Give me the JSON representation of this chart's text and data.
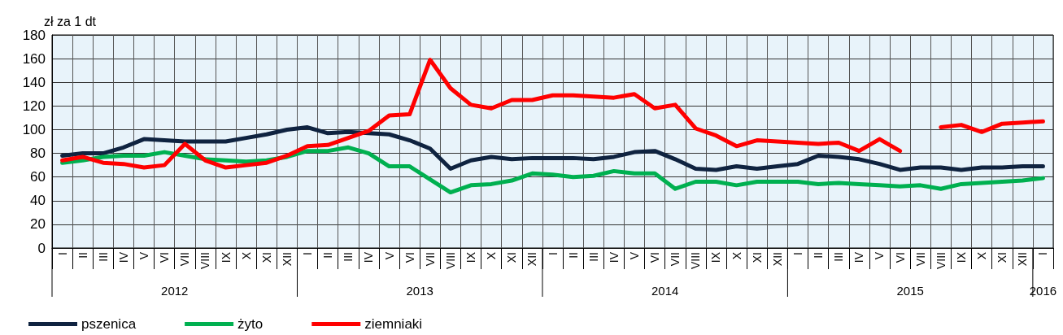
{
  "chart_data": {
    "type": "line",
    "ylabel": "zł za 1 dt",
    "categories": [
      "I",
      "II",
      "III",
      "IV",
      "V",
      "VI",
      "VII",
      "VIII",
      "IX",
      "X",
      "XI",
      "XII",
      "I",
      "II",
      "III",
      "IV",
      "V",
      "VI",
      "VII",
      "VIII",
      "IX",
      "X",
      "XI",
      "XII",
      "I",
      "II",
      "III",
      "IV",
      "V",
      "VI",
      "VII",
      "VIII",
      "IX",
      "X",
      "XI",
      "XII",
      "I",
      "II",
      "III",
      "IV",
      "V",
      "VI",
      "VII",
      "VIII",
      "IX",
      "X",
      "XI",
      "XII",
      "I"
    ],
    "annotations": [
      "2012",
      "2013",
      "2014",
      "2015",
      "2016"
    ],
    "series": [
      {
        "name": "pszenica",
        "color": "#0f2340",
        "values": [
          78,
          80,
          80,
          85,
          92,
          91,
          90,
          90,
          90,
          93,
          96,
          100,
          102,
          97,
          98,
          97,
          96,
          91,
          84,
          67,
          74,
          77,
          75,
          76,
          76,
          76,
          75,
          77,
          81,
          82,
          75,
          67,
          66,
          69,
          67,
          69,
          71,
          78,
          77,
          75,
          71,
          66,
          68,
          68,
          66,
          68,
          68,
          69,
          69
        ]
      },
      {
        "name": "żyto",
        "color": "#00b050",
        "values": [
          72,
          74,
          77,
          78,
          78,
          81,
          78,
          75,
          74,
          73,
          74,
          77,
          82,
          82,
          85,
          80,
          69,
          69,
          58,
          47,
          53,
          54,
          57,
          63,
          62,
          60,
          61,
          65,
          63,
          63,
          50,
          56,
          56,
          53,
          56,
          56,
          56,
          54,
          55,
          54,
          53,
          52,
          53,
          50,
          54,
          55,
          56,
          57,
          59
        ]
      },
      {
        "name": "ziemniaki",
        "color": "#ff0000",
        "values": [
          74,
          77,
          72,
          71,
          68,
          70,
          88,
          74,
          68,
          70,
          72,
          78,
          86,
          87,
          93,
          99,
          112,
          113,
          159,
          135,
          121,
          118,
          125,
          125,
          129,
          129,
          128,
          127,
          130,
          118,
          121,
          101,
          95,
          86,
          91,
          90,
          89,
          88,
          89,
          82,
          92,
          82,
          null,
          102,
          104,
          98,
          105,
          106,
          107
        ]
      }
    ],
    "ylim": [
      0,
      180
    ],
    "yticks": [
      0,
      20,
      40,
      60,
      80,
      100,
      120,
      140,
      160,
      180
    ],
    "grid": true,
    "legend": "bottom left",
    "marker": "none",
    "line_style": "solid"
  }
}
